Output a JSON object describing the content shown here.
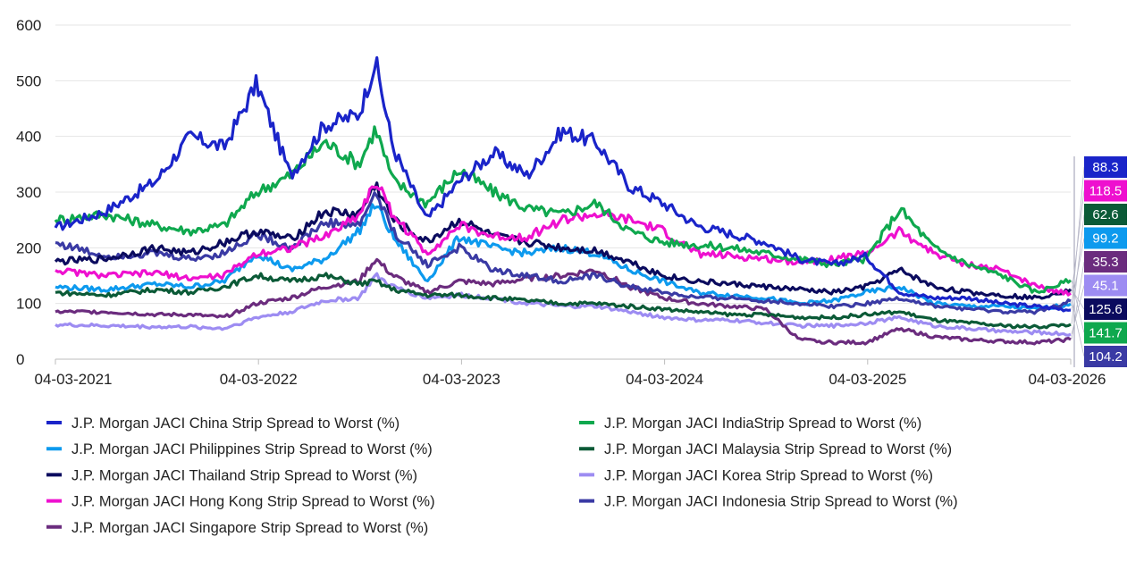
{
  "chart_data": {
    "type": "line",
    "title": "",
    "xlabel": "",
    "ylabel": "",
    "ylim": [
      0,
      600
    ],
    "y_ticks": [
      0,
      100,
      200,
      300,
      400,
      500,
      600
    ],
    "x_ticks": [
      "04-03-2021",
      "04-03-2022",
      "04-03-2023",
      "04-03-2024",
      "04-03-2025",
      "04-03-2026"
    ],
    "x_range": [
      "2021-03-04",
      "2026-03-04"
    ],
    "grid": "horizontal",
    "legend_position": "bottom",
    "series": [
      {
        "name": "J.P. Morgan JACI China Strip Spread to Worst (%)",
        "color": "#1a24c9",
        "last_value": "88.3",
        "x": [
          "2021-03",
          "2021-06",
          "2021-09",
          "2021-11",
          "2022-01",
          "2022-03",
          "2022-05",
          "2022-07",
          "2022-09",
          "2022-10",
          "2022-11",
          "2023-01",
          "2023-03",
          "2023-05",
          "2023-07",
          "2023-09",
          "2023-11",
          "2024-01",
          "2024-03",
          "2024-05",
          "2024-07",
          "2024-09",
          "2024-11",
          "2025-01",
          "2025-03",
          "2025-05",
          "2025-07",
          "2025-09",
          "2025-11",
          "2026-01",
          "2026-03"
        ],
        "y": [
          235,
          265,
          320,
          400,
          380,
          495,
          330,
          420,
          440,
          535,
          380,
          250,
          320,
          370,
          330,
          410,
          390,
          310,
          280,
          240,
          225,
          210,
          180,
          170,
          185,
          120,
          110,
          110,
          100,
          95,
          88.3
        ]
      },
      {
        "name": "J.P. Morgan JACI IndiaStrip Spread to Worst (%)",
        "color": "#0fa84e",
        "last_value": "141.7",
        "x": [
          "2021-03",
          "2021-06",
          "2021-09",
          "2021-11",
          "2022-01",
          "2022-03",
          "2022-05",
          "2022-07",
          "2022-09",
          "2022-10",
          "2022-11",
          "2023-01",
          "2023-03",
          "2023-05",
          "2023-07",
          "2023-09",
          "2023-11",
          "2024-01",
          "2024-03",
          "2024-05",
          "2024-07",
          "2024-09",
          "2024-11",
          "2025-01",
          "2025-03",
          "2025-05",
          "2025-07",
          "2025-09",
          "2025-11",
          "2026-01",
          "2026-03"
        ],
        "y": [
          250,
          260,
          240,
          230,
          240,
          300,
          330,
          390,
          350,
          415,
          320,
          280,
          340,
          300,
          270,
          260,
          280,
          230,
          210,
          205,
          200,
          190,
          180,
          170,
          180,
          270,
          200,
          170,
          150,
          120,
          141.7
        ]
      },
      {
        "name": "J.P. Morgan JACI Philippines Strip Spread to Worst (%)",
        "color": "#0d9aee",
        "last_value": "99.2",
        "x": [
          "2021-03",
          "2021-06",
          "2021-09",
          "2021-11",
          "2022-01",
          "2022-03",
          "2022-05",
          "2022-07",
          "2022-09",
          "2022-10",
          "2022-11",
          "2023-01",
          "2023-03",
          "2023-05",
          "2023-07",
          "2023-09",
          "2023-11",
          "2024-01",
          "2024-03",
          "2024-05",
          "2024-07",
          "2024-09",
          "2024-11",
          "2025-01",
          "2025-03",
          "2025-05",
          "2025-07",
          "2025-09",
          "2025-11",
          "2026-01",
          "2026-03"
        ],
        "y": [
          130,
          125,
          135,
          130,
          140,
          190,
          160,
          180,
          230,
          280,
          220,
          140,
          220,
          200,
          190,
          200,
          190,
          160,
          140,
          120,
          115,
          110,
          100,
          105,
          120,
          130,
          100,
          95,
          95,
          90,
          99.2
        ]
      },
      {
        "name": "J.P. Morgan JACI Malaysia Strip Spread to Worst (%)",
        "color": "#0b5a37",
        "last_value": "62.6",
        "x": [
          "2021-03",
          "2021-06",
          "2021-09",
          "2021-11",
          "2022-01",
          "2022-03",
          "2022-05",
          "2022-07",
          "2022-09",
          "2022-10",
          "2022-11",
          "2023-01",
          "2023-03",
          "2023-05",
          "2023-07",
          "2023-09",
          "2023-11",
          "2024-01",
          "2024-03",
          "2024-05",
          "2024-07",
          "2024-09",
          "2024-11",
          "2025-01",
          "2025-03",
          "2025-05",
          "2025-07",
          "2025-09",
          "2025-11",
          "2026-01",
          "2026-03"
        ],
        "y": [
          120,
          115,
          125,
          120,
          130,
          150,
          140,
          150,
          135,
          140,
          125,
          115,
          115,
          110,
          105,
          100,
          100,
          95,
          90,
          85,
          80,
          80,
          75,
          75,
          80,
          85,
          70,
          65,
          60,
          58,
          62.6
        ]
      },
      {
        "name": "J.P. Morgan JACI Thailand Strip Spread to Worst (%)",
        "color": "#0b0b5e",
        "last_value": "125.6",
        "x": [
          "2021-03",
          "2021-06",
          "2021-09",
          "2021-11",
          "2022-01",
          "2022-03",
          "2022-05",
          "2022-07",
          "2022-09",
          "2022-10",
          "2022-11",
          "2023-01",
          "2023-03",
          "2023-05",
          "2023-07",
          "2023-09",
          "2023-11",
          "2024-01",
          "2024-03",
          "2024-05",
          "2024-07",
          "2024-09",
          "2024-11",
          "2025-01",
          "2025-03",
          "2025-05",
          "2025-07",
          "2025-09",
          "2025-11",
          "2026-01",
          "2026-03"
        ],
        "y": [
          175,
          180,
          200,
          190,
          210,
          230,
          215,
          265,
          260,
          315,
          250,
          210,
          250,
          220,
          210,
          200,
          195,
          175,
          150,
          140,
          135,
          130,
          125,
          120,
          130,
          160,
          130,
          120,
          115,
          110,
          125.6
        ]
      },
      {
        "name": "J.P. Morgan JACI Korea Strip Spread to Worst (%)",
        "color": "#9d8cf2",
        "last_value": "45.1",
        "x": [
          "2021-03",
          "2021-06",
          "2021-09",
          "2021-11",
          "2022-01",
          "2022-03",
          "2022-05",
          "2022-07",
          "2022-09",
          "2022-10",
          "2022-11",
          "2023-01",
          "2023-03",
          "2023-05",
          "2023-07",
          "2023-09",
          "2023-11",
          "2024-01",
          "2024-03",
          "2024-05",
          "2024-07",
          "2024-09",
          "2024-11",
          "2025-01",
          "2025-03",
          "2025-05",
          "2025-07",
          "2025-09",
          "2025-11",
          "2026-01",
          "2026-03"
        ],
        "y": [
          62,
          60,
          58,
          58,
          55,
          75,
          85,
          105,
          110,
          150,
          130,
          110,
          115,
          110,
          100,
          95,
          95,
          85,
          75,
          70,
          70,
          65,
          60,
          60,
          65,
          75,
          60,
          55,
          50,
          48,
          45.1
        ]
      },
      {
        "name": "J.P. Morgan JACI Hong Kong Strip Spread to Worst (%)",
        "color": "#ee10cf",
        "last_value": "118.5",
        "x": [
          "2021-03",
          "2021-06",
          "2021-09",
          "2021-11",
          "2022-01",
          "2022-03",
          "2022-05",
          "2022-07",
          "2022-09",
          "2022-10",
          "2022-11",
          "2023-01",
          "2023-03",
          "2023-05",
          "2023-07",
          "2023-09",
          "2023-11",
          "2024-01",
          "2024-03",
          "2024-05",
          "2024-07",
          "2024-09",
          "2024-11",
          "2025-01",
          "2025-03",
          "2025-05",
          "2025-07",
          "2025-09",
          "2025-11",
          "2026-01",
          "2026-03"
        ],
        "y": [
          160,
          150,
          155,
          145,
          150,
          190,
          200,
          220,
          260,
          320,
          260,
          190,
          240,
          220,
          220,
          250,
          260,
          250,
          230,
          190,
          185,
          180,
          175,
          180,
          190,
          230,
          190,
          170,
          160,
          130,
          118.5
        ]
      },
      {
        "name": "J.P. Morgan JACI Indonesia Strip Spread to Worst (%)",
        "color": "#3a3aa4",
        "last_value": "104.2",
        "x": [
          "2021-03",
          "2021-06",
          "2021-09",
          "2021-11",
          "2022-01",
          "2022-03",
          "2022-05",
          "2022-07",
          "2022-09",
          "2022-10",
          "2022-11",
          "2023-01",
          "2023-03",
          "2023-05",
          "2023-07",
          "2023-09",
          "2023-11",
          "2024-01",
          "2024-03",
          "2024-05",
          "2024-07",
          "2024-09",
          "2024-11",
          "2025-01",
          "2025-03",
          "2025-05",
          "2025-07",
          "2025-09",
          "2025-11",
          "2026-01",
          "2026-03"
        ],
        "y": [
          210,
          185,
          190,
          180,
          190,
          225,
          200,
          245,
          240,
          300,
          230,
          170,
          200,
          160,
          150,
          140,
          150,
          130,
          120,
          110,
          110,
          105,
          100,
          95,
          100,
          110,
          95,
          90,
          85,
          85,
          104.2
        ]
      },
      {
        "name": "J.P. Morgan JACI Singapore Strip Spread to Worst (%)",
        "color": "#6b2c7e",
        "last_value": "35.3",
        "x": [
          "2021-03",
          "2021-06",
          "2021-09",
          "2021-11",
          "2022-01",
          "2022-03",
          "2022-05",
          "2022-07",
          "2022-09",
          "2022-10",
          "2022-11",
          "2023-01",
          "2023-03",
          "2023-05",
          "2023-07",
          "2023-09",
          "2023-11",
          "2024-01",
          "2024-03",
          "2024-05",
          "2024-07",
          "2024-09",
          "2024-11",
          "2025-01",
          "2025-03",
          "2025-05",
          "2025-07",
          "2025-09",
          "2025-11",
          "2026-01",
          "2026-03"
        ],
        "y": [
          85,
          85,
          80,
          80,
          75,
          100,
          110,
          130,
          140,
          180,
          150,
          120,
          140,
          135,
          145,
          150,
          160,
          130,
          110,
          100,
          95,
          90,
          35,
          30,
          30,
          55,
          40,
          35,
          32,
          30,
          35.3
        ]
      }
    ],
    "end_labels_order": [
      "88.3",
      "118.5",
      "62.6",
      "99.2",
      "35.3",
      "45.1",
      "125.6",
      "141.7",
      "104.2"
    ]
  }
}
